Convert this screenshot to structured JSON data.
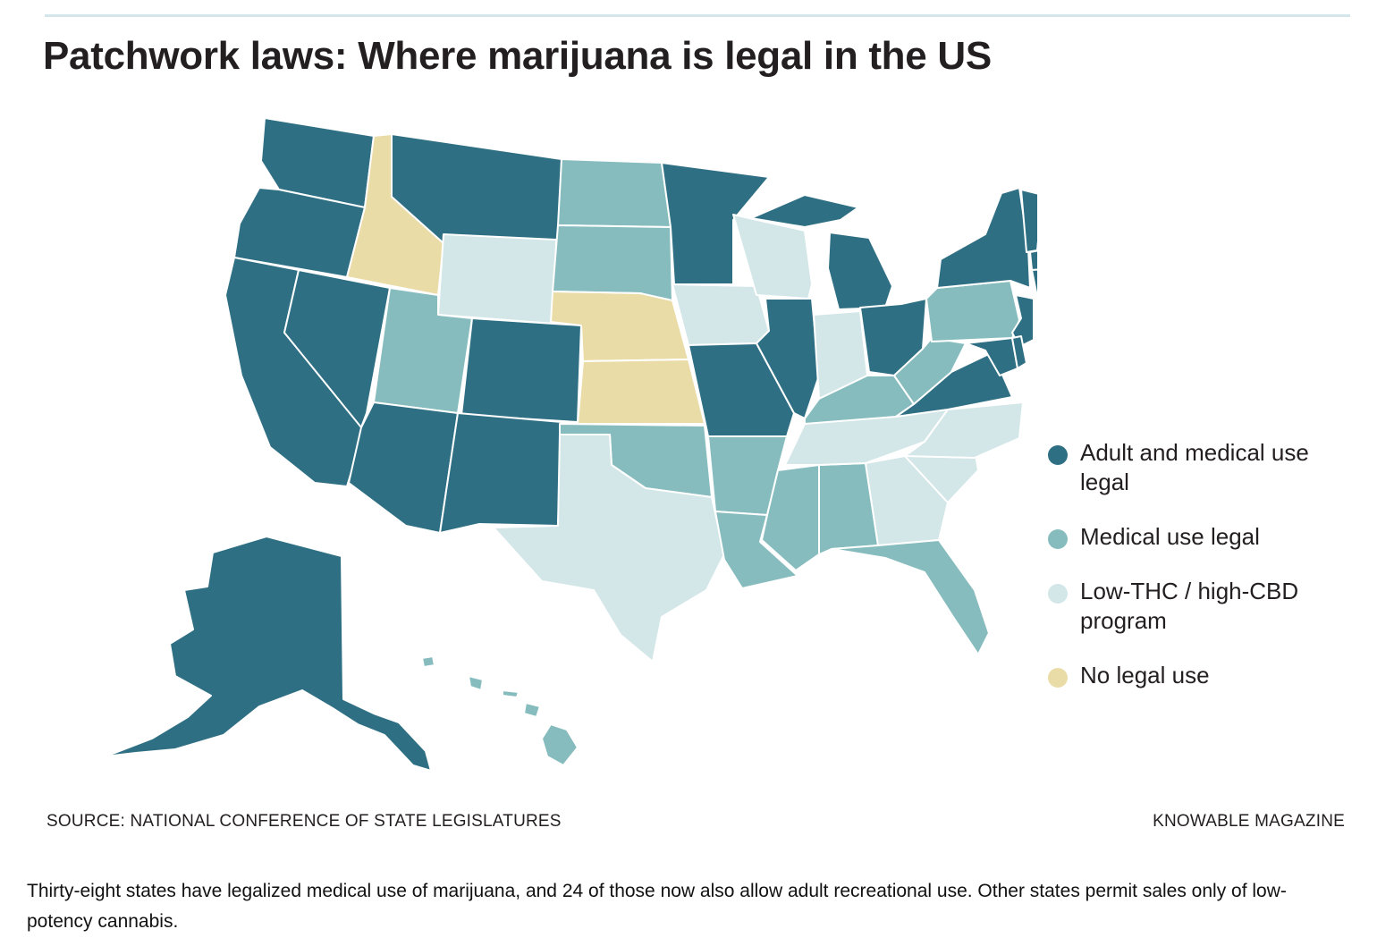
{
  "title": "Patchwork laws: Where marijuana is legal in the US",
  "colors": {
    "adult": "#2e6f83",
    "medical": "#87bcbe",
    "lowthc": "#d3e6e8",
    "none": "#eadca6"
  },
  "legend": [
    {
      "label": "Adult and medical use legal",
      "color": "#2e6f83"
    },
    {
      "label": "Medical use legal",
      "color": "#87bcbe"
    },
    {
      "label": "Low-THC / high-CBD program",
      "color": "#d3e6e8"
    },
    {
      "label": "No legal use",
      "color": "#eadca6"
    }
  ],
  "source": "SOURCE: NATIONAL CONFERENCE OF STATE LEGISLATURES",
  "credit": "KNOWABLE MAGAZINE",
  "caption": "Thirty-eight states have legalized medical use of marijuana, and 24 of those now also allow adult recreational use. Other states permit sales only of low-potency cannabis."
}
